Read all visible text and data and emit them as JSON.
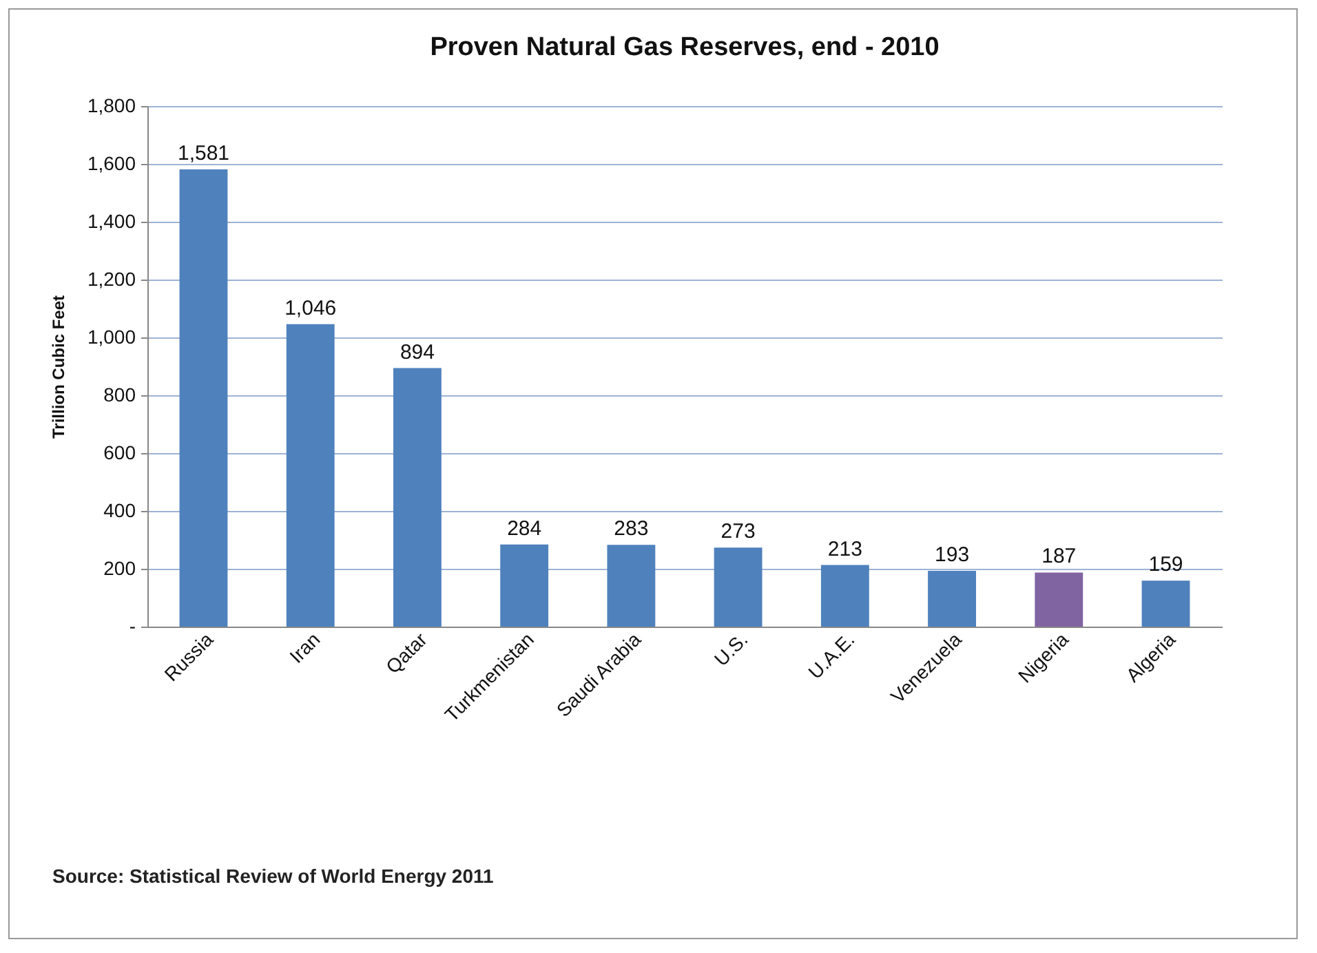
{
  "chart_data": {
    "type": "bar",
    "title": "Proven Natural Gas Reserves, end - 2010",
    "ylabel": "Trillion Cubic Feet",
    "categories": [
      "Russia",
      "Iran",
      "Qatar",
      "Turkmenistan",
      "Saudi Arabia",
      "U.S.",
      "U.A.E.",
      "Venezuela",
      "Nigeria",
      "Algeria"
    ],
    "values": [
      1581,
      1046,
      894,
      284,
      283,
      273,
      213,
      193,
      187,
      159
    ],
    "colors": [
      "#4f81bd",
      "#4f81bd",
      "#4f81bd",
      "#4f81bd",
      "#4f81bd",
      "#4f81bd",
      "#4f81bd",
      "#4f81bd",
      "#8064a2",
      "#4f81bd"
    ],
    "ylim": [
      0,
      1800
    ],
    "yticks": [
      {
        "value": 0,
        "label": "-"
      },
      {
        "value": 200,
        "label": "200"
      },
      {
        "value": 400,
        "label": "400"
      },
      {
        "value": 600,
        "label": "600"
      },
      {
        "value": 800,
        "label": "800"
      },
      {
        "value": 1000,
        "label": "1,000"
      },
      {
        "value": 1200,
        "label": "1,200"
      },
      {
        "value": 1400,
        "label": "1,400"
      },
      {
        "value": 1600,
        "label": "1,600"
      },
      {
        "value": 1800,
        "label": "1,800"
      }
    ],
    "value_labels": [
      "1,581",
      "1,046",
      "894",
      "284",
      "283",
      "273",
      "213",
      "193",
      "187",
      "159"
    ],
    "grid": "y",
    "annotations": [
      "Source: Statistical Review of World Energy 2011"
    ]
  }
}
